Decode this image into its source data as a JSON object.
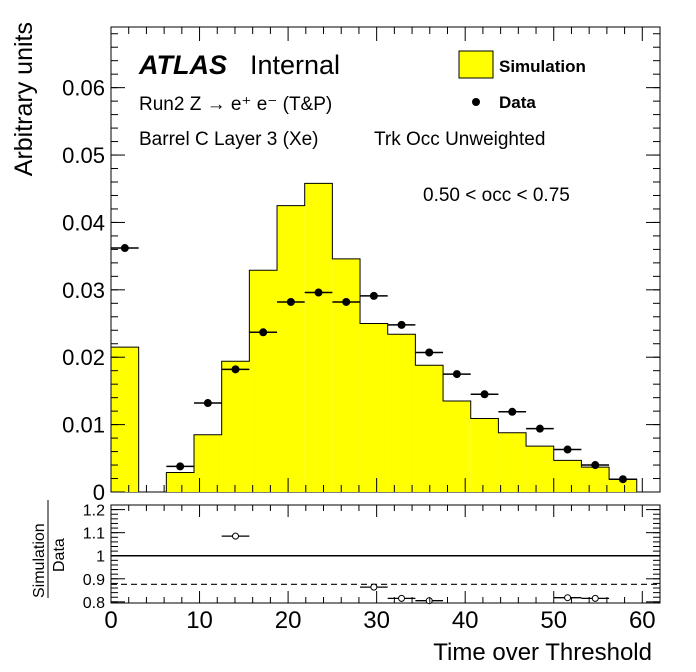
{
  "chart_data": [
    {
      "type": "bar",
      "panel": "main",
      "ylabel": "Arbitrary units",
      "xlim": [
        0,
        62
      ],
      "ylim": [
        0,
        0.069
      ],
      "yticks": [
        0,
        0.01,
        0.02,
        0.03,
        0.04,
        0.05,
        0.06
      ],
      "ytick_labels": [
        "0",
        "0.01",
        "0.02",
        "0.03",
        "0.04",
        "0.05",
        "0.06"
      ],
      "annotations": {
        "atlas": "ATLAS",
        "internal": "Internal",
        "line1": "Run2 Z → e⁺ e⁻ (T&P)",
        "line2": "Barrel C Layer 3 (Xe)",
        "line3": "Trk Occ Unweighted",
        "occ": "0.50 < occ < 0.75"
      },
      "legend": {
        "position": "top-right",
        "sim_label": "Simulation",
        "data_label": "Data"
      },
      "series": [
        {
          "name": "Simulation",
          "style": "filled-histogram",
          "color": "#ffff00",
          "bin_edges": [
            0,
            3.125,
            6.25,
            9.375,
            12.5,
            15.625,
            18.75,
            21.875,
            25,
            28.125,
            31.25,
            34.375,
            37.5,
            40.625,
            43.75,
            46.875,
            50,
            53.125,
            56.25,
            59.375
          ],
          "values": [
            0.0215,
            0.0,
            0.0029,
            0.0085,
            0.0194,
            0.0329,
            0.0425,
            0.0458,
            0.0346,
            0.025,
            0.0234,
            0.0188,
            0.0135,
            0.0109,
            0.0088,
            0.0068,
            0.0047,
            0.0037,
            0.0019
          ]
        },
        {
          "name": "Data",
          "style": "markers-with-xerr",
          "color": "#000000",
          "x": [
            1.5625,
            7.8125,
            10.9375,
            14.0625,
            17.1875,
            20.3125,
            23.4375,
            26.5625,
            29.6875,
            32.8125,
            35.9375,
            39.0625,
            42.1875,
            45.3125,
            48.4375,
            51.5625,
            54.6875,
            57.8125
          ],
          "values": [
            0.0362,
            0.0038,
            0.0132,
            0.0182,
            0.0237,
            0.0282,
            0.0296,
            0.0282,
            0.0291,
            0.0248,
            0.0207,
            0.0175,
            0.0145,
            0.0119,
            0.0094,
            0.0063,
            0.004,
            0.0019
          ],
          "xerr": 1.5625
        }
      ]
    },
    {
      "type": "scatter",
      "panel": "ratio",
      "ylabel_top": "Simulation",
      "ylabel_bottom": "Data",
      "xlabel": "Time over Threshold",
      "xlim": [
        0,
        62
      ],
      "ylim": [
        0.795,
        1.22
      ],
      "yticks": [
        0.8,
        0.9,
        1.0,
        1.1,
        1.2
      ],
      "ytick_labels": [
        "0.8",
        "0.9",
        "1",
        "1.1",
        "1.2"
      ],
      "xticks": [
        0,
        10,
        20,
        30,
        40,
        50,
        60
      ],
      "xtick_labels": [
        "0",
        "10",
        "20",
        "30",
        "40",
        "50",
        "60"
      ],
      "reference_line": 1.0,
      "mean_line": 0.876,
      "series": [
        {
          "name": "",
          "x": [
            14.0625,
            29.6875,
            32.8125,
            35.9375,
            51.5625,
            54.6875
          ],
          "values": [
            1.085,
            0.864,
            0.815,
            0.805,
            0.818,
            0.815
          ],
          "xerr": 1.5625
        }
      ]
    }
  ]
}
